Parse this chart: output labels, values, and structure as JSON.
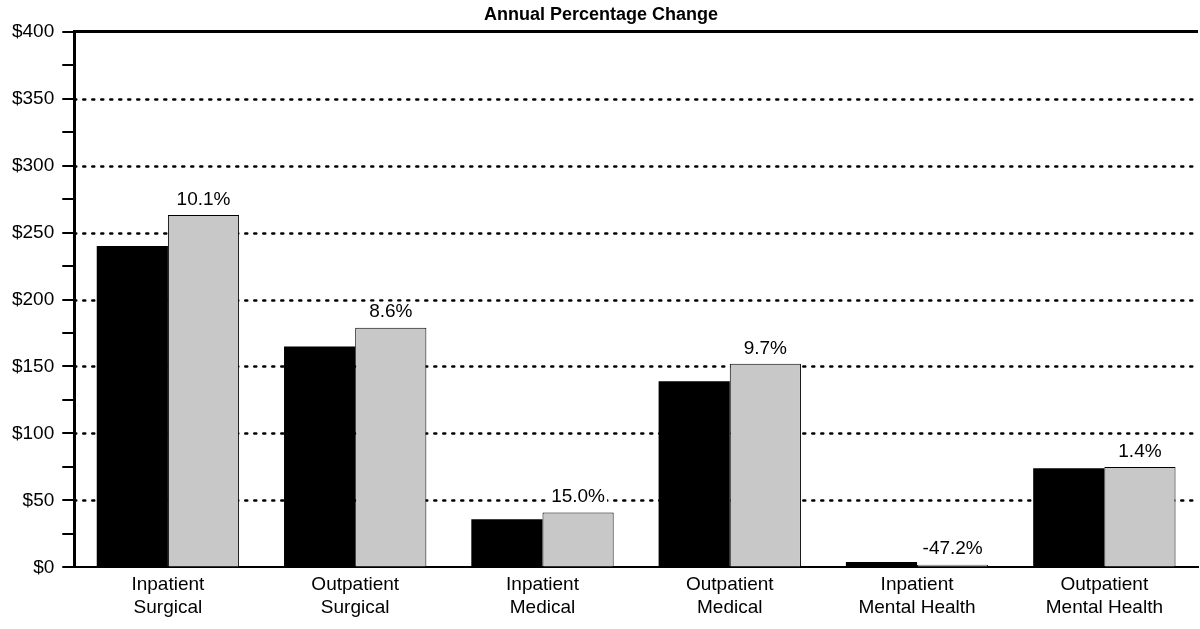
{
  "chart_data": {
    "type": "bar",
    "title": "Annual Percentage Change",
    "categories": [
      "Inpatient Surgical",
      "Outpatient Surgical",
      "Inpatient Medical",
      "Outpatient Medical",
      "Inpatient Mental Health",
      "Outpatient Mental Health"
    ],
    "series": [
      {
        "color": "#000000",
        "values": [
          240,
          165,
          36,
          139,
          4,
          74
        ]
      },
      {
        "color": "#c8c8c8",
        "values": [
          263,
          179,
          41,
          152,
          2,
          75
        ]
      }
    ],
    "annotations": [
      {
        "text": "10.1%",
        "x": "Inpatient Surgical",
        "y": 263
      },
      {
        "text": "8.6%",
        "x": "Outpatient Surgical",
        "y": 179
      },
      {
        "text": "15.0%",
        "x": "Inpatient Medical",
        "y": 41
      },
      {
        "text": "9.7%",
        "x": "Outpatient Medical",
        "y": 152
      },
      {
        "text": "-47.2%",
        "x": "Inpatient Mental Health",
        "y": 2
      },
      {
        "text": "1.4%",
        "x": "Outpatient Mental Health",
        "y": 75
      }
    ],
    "ylim": [
      0,
      400
    ],
    "yticks": [
      {
        "value": 0,
        "label": "$0"
      },
      {
        "value": 25,
        "label": null
      },
      {
        "value": 50,
        "label": "$50"
      },
      {
        "value": 75,
        "label": null
      },
      {
        "value": 100,
        "label": "$100"
      },
      {
        "value": 125,
        "label": null
      },
      {
        "value": 150,
        "label": "$150"
      },
      {
        "value": 175,
        "label": null
      },
      {
        "value": 200,
        "label": "$200"
      },
      {
        "value": 225,
        "label": null
      },
      {
        "value": 250,
        "label": "$250"
      },
      {
        "value": 275,
        "label": null
      },
      {
        "value": 300,
        "label": "$300"
      },
      {
        "value": 325,
        "label": null
      },
      {
        "value": 350,
        "label": "$350"
      },
      {
        "value": 375,
        "label": null
      },
      {
        "value": 400,
        "label": "$400"
      }
    ],
    "grid": "y",
    "legend": false,
    "line_style": "dotted"
  }
}
